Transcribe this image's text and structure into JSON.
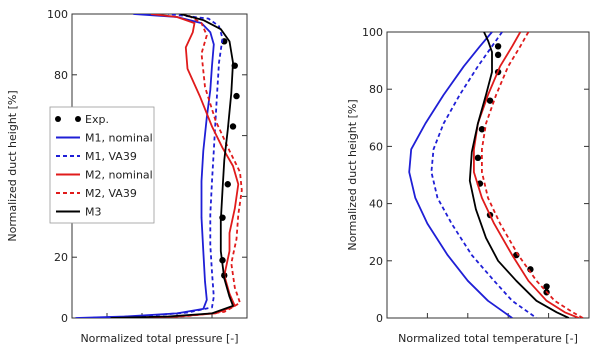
{
  "chart_data": [
    {
      "type": "line",
      "xlabel": "Normalized total pressure [-]",
      "ylabel": "Normalized duct height [%]",
      "ylim": [
        0,
        100
      ],
      "yticks": [
        0,
        20,
        40,
        60,
        80,
        100
      ],
      "xlim": [
        0,
        1
      ],
      "x_tick_labels_shown": false,
      "legend": {
        "placement": "center-left",
        "entries": [
          {
            "label": "Exp.",
            "color": "#000000",
            "style": "markers"
          },
          {
            "label": "M1, nominal",
            "color": "#1f1fd6",
            "style": "solid"
          },
          {
            "label": "M1, VA39",
            "color": "#1f1fd6",
            "style": "dashed"
          },
          {
            "label": "M2, nominal",
            "color": "#e01b1b",
            "style": "solid"
          },
          {
            "label": "M2, VA39",
            "color": "#e01b1b",
            "style": "dashed"
          },
          {
            "label": "M3",
            "color": "#000000",
            "style": "solid"
          }
        ]
      },
      "series": [
        {
          "key": "exp",
          "color": "#000000",
          "style": "markers",
          "points": [
            [
              0.87,
              91
            ],
            [
              0.93,
              83
            ],
            [
              0.94,
              73
            ],
            [
              0.92,
              63
            ],
            [
              0.89,
              44
            ],
            [
              0.86,
              33
            ],
            [
              0.86,
              19
            ],
            [
              0.87,
              14
            ]
          ]
        },
        {
          "key": "m1n",
          "color": "#1f1fd6",
          "style": "solid",
          "points": [
            [
              0.02,
              0
            ],
            [
              0.3,
              0.5
            ],
            [
              0.6,
              1.5
            ],
            [
              0.75,
              3
            ],
            [
              0.77,
              6
            ],
            [
              0.76,
              12
            ],
            [
              0.75,
              22
            ],
            [
              0.74,
              33
            ],
            [
              0.74,
              45
            ],
            [
              0.75,
              55
            ],
            [
              0.77,
              66
            ],
            [
              0.79,
              75
            ],
            [
              0.8,
              83
            ],
            [
              0.81,
              90
            ],
            [
              0.79,
              94
            ],
            [
              0.74,
              97
            ],
            [
              0.6,
              99
            ],
            [
              0.35,
              100
            ]
          ]
        },
        {
          "key": "m1v",
          "color": "#1f1fd6",
          "style": "dashed",
          "points": [
            [
              0.08,
              0
            ],
            [
              0.4,
              0.6
            ],
            [
              0.66,
              1.8
            ],
            [
              0.8,
              3.5
            ],
            [
              0.81,
              7
            ],
            [
              0.8,
              15
            ],
            [
              0.79,
              24
            ],
            [
              0.79,
              34
            ],
            [
              0.8,
              45
            ],
            [
              0.81,
              55
            ],
            [
              0.82,
              65
            ],
            [
              0.83,
              75
            ],
            [
              0.84,
              84
            ],
            [
              0.86,
              92
            ],
            [
              0.84,
              96
            ],
            [
              0.78,
              98.5
            ],
            [
              0.55,
              100
            ]
          ]
        },
        {
          "key": "m2n",
          "color": "#e01b1b",
          "style": "solid",
          "points": [
            [
              0.28,
              0
            ],
            [
              0.6,
              0.5
            ],
            [
              0.82,
              1.5
            ],
            [
              0.93,
              4
            ],
            [
              0.9,
              8
            ],
            [
              0.87,
              14
            ],
            [
              0.9,
              22
            ],
            [
              0.9,
              28
            ],
            [
              0.93,
              36
            ],
            [
              0.95,
              44
            ],
            [
              0.92,
              50
            ],
            [
              0.86,
              56
            ],
            [
              0.8,
              63
            ],
            [
              0.73,
              73
            ],
            [
              0.66,
              82
            ],
            [
              0.65,
              89
            ],
            [
              0.69,
              94
            ],
            [
              0.7,
              97
            ],
            [
              0.6,
              99
            ],
            [
              0.45,
              100
            ]
          ]
        },
        {
          "key": "m2v",
          "color": "#e01b1b",
          "style": "dashed",
          "points": [
            [
              0.34,
              0
            ],
            [
              0.65,
              0.6
            ],
            [
              0.87,
              2
            ],
            [
              0.96,
              5
            ],
            [
              0.93,
              10
            ],
            [
              0.91,
              18
            ],
            [
              0.94,
              26
            ],
            [
              0.95,
              34
            ],
            [
              0.97,
              42
            ],
            [
              0.96,
              48
            ],
            [
              0.9,
              55
            ],
            [
              0.82,
              65
            ],
            [
              0.76,
              76
            ],
            [
              0.74,
              87
            ],
            [
              0.77,
              93
            ],
            [
              0.74,
              97
            ],
            [
              0.65,
              100
            ]
          ]
        },
        {
          "key": "m3",
          "color": "#000000",
          "style": "solid",
          "points": [
            [
              0.22,
              0
            ],
            [
              0.55,
              0.5
            ],
            [
              0.8,
              1.5
            ],
            [
              0.92,
              4
            ],
            [
              0.9,
              7
            ],
            [
              0.87,
              13
            ],
            [
              0.85,
              22
            ],
            [
              0.85,
              32
            ],
            [
              0.86,
              42
            ],
            [
              0.87,
              52
            ],
            [
              0.89,
              62
            ],
            [
              0.91,
              74
            ],
            [
              0.92,
              84
            ],
            [
              0.9,
              91
            ],
            [
              0.85,
              95
            ],
            [
              0.75,
              98
            ],
            [
              0.62,
              100
            ]
          ]
        }
      ]
    },
    {
      "type": "line",
      "xlabel": "Normalized total temperature [-]",
      "ylabel": "Normalized duct height [%]",
      "ylim": [
        0,
        100
      ],
      "yticks": [
        0,
        20,
        40,
        60,
        80,
        100
      ],
      "xlim": [
        0,
        1
      ],
      "x_tick_labels_shown": false,
      "series": [
        {
          "key": "exp",
          "color": "#000000",
          "style": "markers",
          "points": [
            [
              0.55,
              95
            ],
            [
              0.55,
              92
            ],
            [
              0.55,
              86
            ],
            [
              0.51,
              76
            ],
            [
              0.47,
              66
            ],
            [
              0.45,
              56
            ],
            [
              0.46,
              47
            ],
            [
              0.51,
              36
            ],
            [
              0.64,
              22
            ],
            [
              0.71,
              17
            ],
            [
              0.79,
              11
            ],
            [
              0.79,
              9
            ]
          ]
        },
        {
          "key": "m1n",
          "color": "#1f1fd6",
          "style": "solid",
          "points": [
            [
              0.52,
              100
            ],
            [
              0.46,
              95
            ],
            [
              0.38,
              88
            ],
            [
              0.28,
              78
            ],
            [
              0.19,
              68
            ],
            [
              0.12,
              59
            ],
            [
              0.11,
              51
            ],
            [
              0.14,
              42
            ],
            [
              0.2,
              33
            ],
            [
              0.3,
              22
            ],
            [
              0.4,
              13
            ],
            [
              0.5,
              6
            ],
            [
              0.58,
              2
            ],
            [
              0.62,
              0
            ]
          ]
        },
        {
          "key": "m1v",
          "color": "#1f1fd6",
          "style": "dashed",
          "points": [
            [
              0.57,
              100
            ],
            [
              0.52,
              95
            ],
            [
              0.45,
              88
            ],
            [
              0.36,
              78
            ],
            [
              0.28,
              68
            ],
            [
              0.23,
              59
            ],
            [
              0.22,
              51
            ],
            [
              0.25,
              42
            ],
            [
              0.32,
              33
            ],
            [
              0.42,
              22
            ],
            [
              0.53,
              13
            ],
            [
              0.62,
              6
            ],
            [
              0.7,
              2
            ],
            [
              0.74,
              0
            ]
          ]
        },
        {
          "key": "m2n",
          "color": "#e01b1b",
          "style": "solid",
          "points": [
            [
              0.66,
              100
            ],
            [
              0.62,
              95
            ],
            [
              0.56,
              88
            ],
            [
              0.5,
              78
            ],
            [
              0.45,
              68
            ],
            [
              0.43,
              59
            ],
            [
              0.43,
              51
            ],
            [
              0.47,
              42
            ],
            [
              0.53,
              33
            ],
            [
              0.62,
              22
            ],
            [
              0.7,
              13
            ],
            [
              0.79,
              6
            ],
            [
              0.88,
              2
            ],
            [
              0.95,
              0
            ]
          ]
        },
        {
          "key": "m2v",
          "color": "#e01b1b",
          "style": "dashed",
          "points": [
            [
              0.7,
              100
            ],
            [
              0.66,
              95
            ],
            [
              0.6,
              88
            ],
            [
              0.54,
              78
            ],
            [
              0.49,
              68
            ],
            [
              0.47,
              59
            ],
            [
              0.47,
              51
            ],
            [
              0.5,
              42
            ],
            [
              0.56,
              33
            ],
            [
              0.65,
              22
            ],
            [
              0.74,
              13
            ],
            [
              0.83,
              6
            ],
            [
              0.92,
              2
            ],
            [
              0.97,
              0
            ]
          ]
        },
        {
          "key": "m3",
          "color": "#000000",
          "style": "solid",
          "points": [
            [
              0.48,
              100
            ],
            [
              0.5,
              97
            ],
            [
              0.52,
              93
            ],
            [
              0.52,
              86
            ],
            [
              0.49,
              78
            ],
            [
              0.45,
              68
            ],
            [
              0.42,
              58
            ],
            [
              0.41,
              48
            ],
            [
              0.44,
              38
            ],
            [
              0.49,
              28
            ],
            [
              0.55,
              20
            ],
            [
              0.64,
              13
            ],
            [
              0.74,
              6
            ],
            [
              0.84,
              2
            ],
            [
              0.9,
              0
            ]
          ]
        }
      ]
    }
  ]
}
